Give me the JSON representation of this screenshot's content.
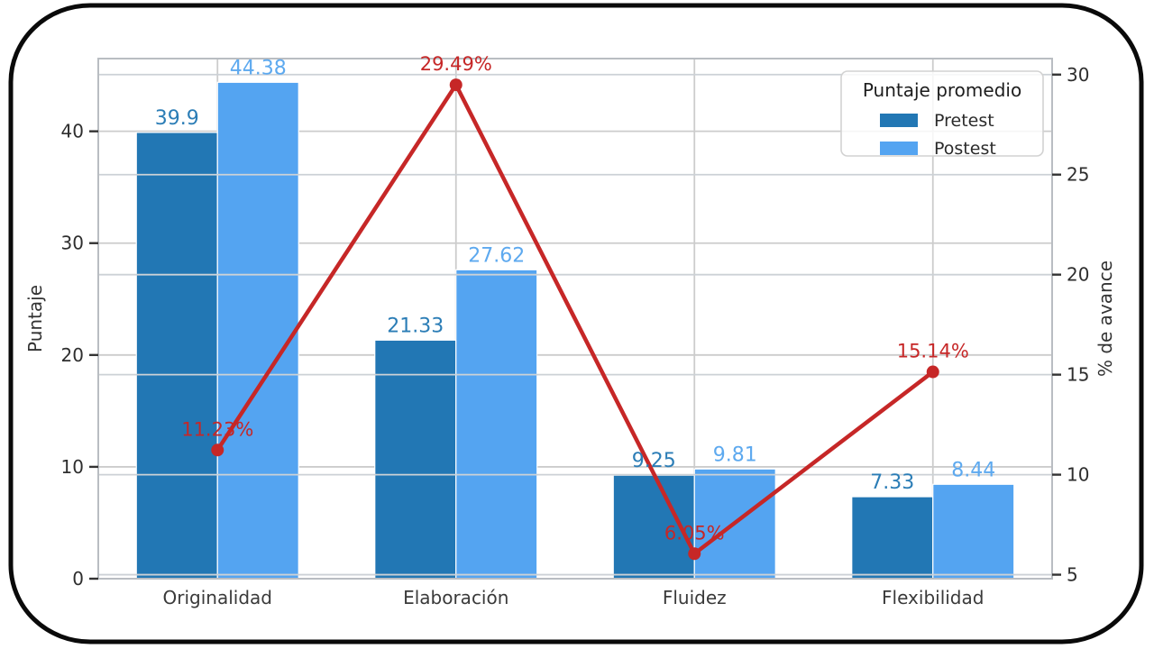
{
  "figure": {
    "frame_color": "#0a0a0a",
    "background": "#ffffff"
  },
  "chart_data": {
    "type": "bar",
    "subtype": "grouped-bars-with-line-overlay",
    "categories": [
      "Originalidad",
      "Elaboración",
      "Fluidez",
      "Flexibilidad"
    ],
    "series": [
      {
        "name": "Pretest",
        "type": "bar",
        "color": "#2277b4",
        "label_color": "#2b7db6",
        "values": [
          39.9,
          21.33,
          9.25,
          7.33
        ],
        "value_labels": [
          "39.9",
          "21.33",
          "9.25",
          "7.33"
        ]
      },
      {
        "name": "Postest",
        "type": "bar",
        "color": "#54a4f1",
        "label_color": "#5da9ef",
        "values": [
          44.38,
          27.62,
          9.81,
          8.44
        ],
        "value_labels": [
          "44.38",
          "27.62",
          "9.81",
          "8.44"
        ]
      },
      {
        "name": "% de avance",
        "type": "line",
        "axis": "right",
        "color": "#c62727",
        "values": [
          11.23,
          29.49,
          6.05,
          15.14
        ],
        "value_labels": [
          "11.23%",
          "29.49%",
          "6.05%",
          "15.14%"
        ]
      }
    ],
    "left_axis": {
      "label": "Puntaje",
      "ticks": [
        0,
        10,
        20,
        30,
        40
      ],
      "min": 0,
      "max": 46.5,
      "tick_color": "#2e2e2e"
    },
    "right_axis": {
      "label": "% de avance",
      "ticks": [
        5,
        10,
        15,
        20,
        25,
        30
      ],
      "min": 4.8,
      "max": 30.8,
      "tick_color": "#2e2e2e"
    },
    "legend": {
      "title": "Puntaje promedio",
      "position": "top-right",
      "items": [
        {
          "label": "Pretest",
          "color": "#2277b4"
        },
        {
          "label": "Postest",
          "color": "#54a4f1"
        }
      ]
    },
    "grid": {
      "show": true,
      "color": "#cccccc",
      "overlay_color": "#ccd1d6"
    },
    "spine_color": "#b9bdc2",
    "text_color": "#333333"
  }
}
